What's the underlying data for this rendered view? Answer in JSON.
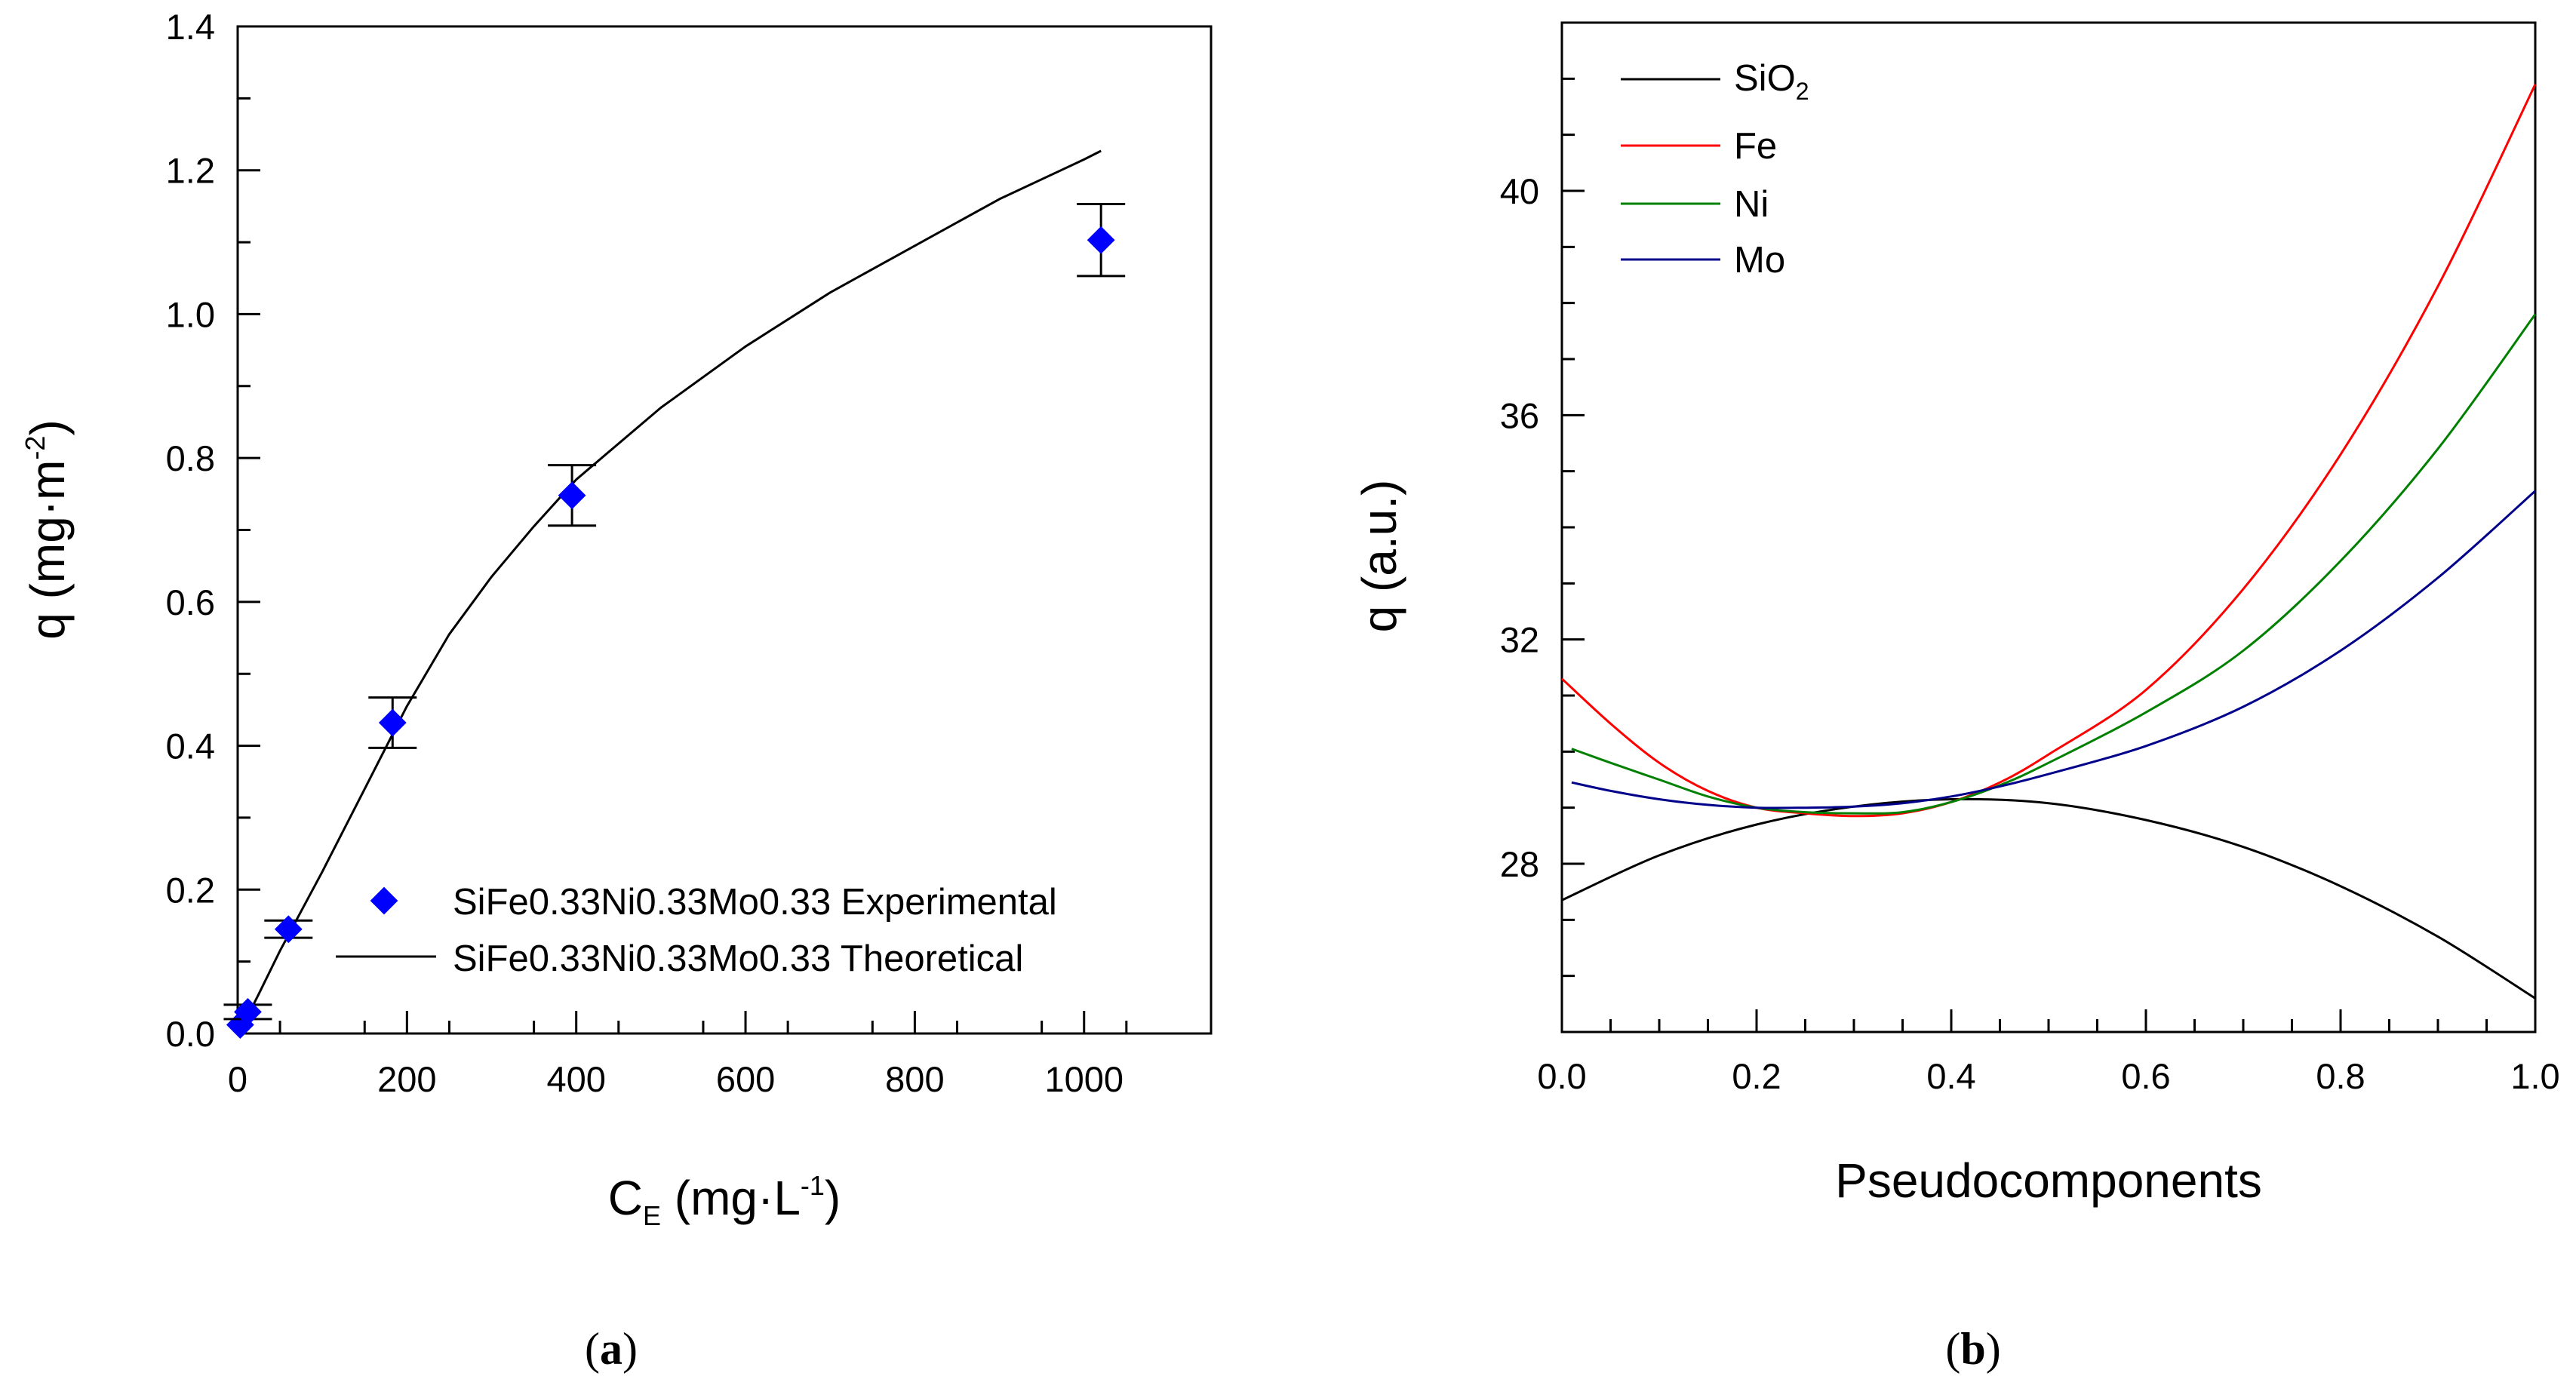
{
  "chart_data": [
    {
      "panel": "a",
      "type": "scatter",
      "xlabel": "C",
      "xlabel_sub": "E",
      "xlabel_unit_pre": " (mg·L",
      "xlabel_unit_sup": "-1",
      "xlabel_unit_post": ")",
      "ylabel": "q (mg·m",
      "ylabel_sup": "-2",
      "ylabel_post": ")",
      "xlim": [
        0,
        1150
      ],
      "ylim": [
        0,
        1.4
      ],
      "xticks": [
        0,
        200,
        400,
        600,
        800,
        1000
      ],
      "xtick_labels": [
        "0",
        "200",
        "400",
        "600",
        "800",
        "1000"
      ],
      "yticks": [
        0,
        0.2,
        0.4,
        0.6,
        0.8,
        1.0,
        1.2,
        1.4
      ],
      "ytick_labels": [
        "0.0",
        "0.2",
        "0.4",
        "0.6",
        "0.8",
        "1.0",
        "1.2",
        "1.4"
      ],
      "series": [
        {
          "name": "SiFe0.33Ni0.33Mo0.33 Experimental",
          "kind": "scatter",
          "color": "#0000ff",
          "x": [
            3,
            12,
            60,
            183,
            395,
            1020
          ],
          "y": [
            0.012,
            0.03,
            0.145,
            0.432,
            0.748,
            1.103
          ],
          "err": [
            0,
            0.01,
            0.012,
            0.035,
            0.042,
            0.05
          ]
        },
        {
          "name": "SiFe0.33Ni0.33Mo0.33 Theoretical",
          "kind": "line",
          "color": "#000000",
          "x": [
            0,
            10,
            25,
            50,
            75,
            100,
            150,
            200,
            250,
            300,
            350,
            400,
            500,
            600,
            700,
            800,
            900,
            1000,
            1020
          ],
          "y": [
            0,
            0.02,
            0.055,
            0.115,
            0.17,
            0.225,
            0.34,
            0.455,
            0.555,
            0.635,
            0.705,
            0.77,
            0.87,
            0.955,
            1.03,
            1.095,
            1.16,
            1.215,
            1.227
          ]
        }
      ],
      "legend_position": "bottom-right",
      "caption": "(a)"
    },
    {
      "panel": "b",
      "type": "line",
      "xlabel": "Pseudocomponents",
      "ylabel": "q (a.u.)",
      "xlim": [
        0,
        1.0
      ],
      "ylim": [
        25.0,
        43.0
      ],
      "xticks": [
        0,
        0.2,
        0.4,
        0.6,
        0.8,
        1.0
      ],
      "xtick_labels": [
        "0.0",
        "0.2",
        "0.4",
        "0.6",
        "0.8",
        "1.0"
      ],
      "yticks": [
        28,
        32,
        36,
        40
      ],
      "ytick_labels": [
        "28",
        "32",
        "36",
        "40"
      ],
      "series": [
        {
          "name": "SiO",
          "name_sub": "2",
          "color": "#000000",
          "x": [
            0,
            0.1,
            0.2,
            0.3,
            0.4,
            0.5,
            0.6,
            0.7,
            0.8,
            0.9,
            1.0
          ],
          "y": [
            27.35,
            28.15,
            28.7,
            29.02,
            29.15,
            29.08,
            28.78,
            28.3,
            27.6,
            26.7,
            25.6
          ]
        },
        {
          "name": "Fe",
          "color": "#ff0000",
          "x": [
            0,
            0.05,
            0.1,
            0.15,
            0.2,
            0.25,
            0.3,
            0.35,
            0.4,
            0.45,
            0.5,
            0.6,
            0.7,
            0.8,
            0.9,
            1.0
          ],
          "y": [
            31.3,
            30.5,
            29.8,
            29.3,
            29.0,
            28.9,
            28.85,
            28.9,
            29.1,
            29.45,
            29.95,
            31.1,
            32.9,
            35.3,
            38.3,
            41.9
          ],
          "start_x": 0.0
        },
        {
          "name": "Ni",
          "color": "#008000",
          "x": [
            0.01,
            0.05,
            0.1,
            0.15,
            0.2,
            0.25,
            0.3,
            0.35,
            0.4,
            0.45,
            0.5,
            0.6,
            0.7,
            0.8,
            0.9,
            1.0
          ],
          "y": [
            30.05,
            29.8,
            29.5,
            29.2,
            29.0,
            28.92,
            28.9,
            28.92,
            29.1,
            29.4,
            29.8,
            30.7,
            31.8,
            33.4,
            35.4,
            37.8
          ]
        },
        {
          "name": "Mo",
          "color": "#00008b",
          "x": [
            0.01,
            0.05,
            0.1,
            0.15,
            0.2,
            0.25,
            0.3,
            0.35,
            0.4,
            0.45,
            0.5,
            0.6,
            0.7,
            0.8,
            0.9,
            1.0
          ],
          "y": [
            29.45,
            29.3,
            29.15,
            29.05,
            29.0,
            29.0,
            29.02,
            29.08,
            29.2,
            29.38,
            29.6,
            30.1,
            30.8,
            31.8,
            33.1,
            34.65
          ]
        }
      ],
      "legend_position": "top-left",
      "caption": "(b)"
    }
  ],
  "captions": {
    "a_letter": "a",
    "b_letter": "b"
  }
}
